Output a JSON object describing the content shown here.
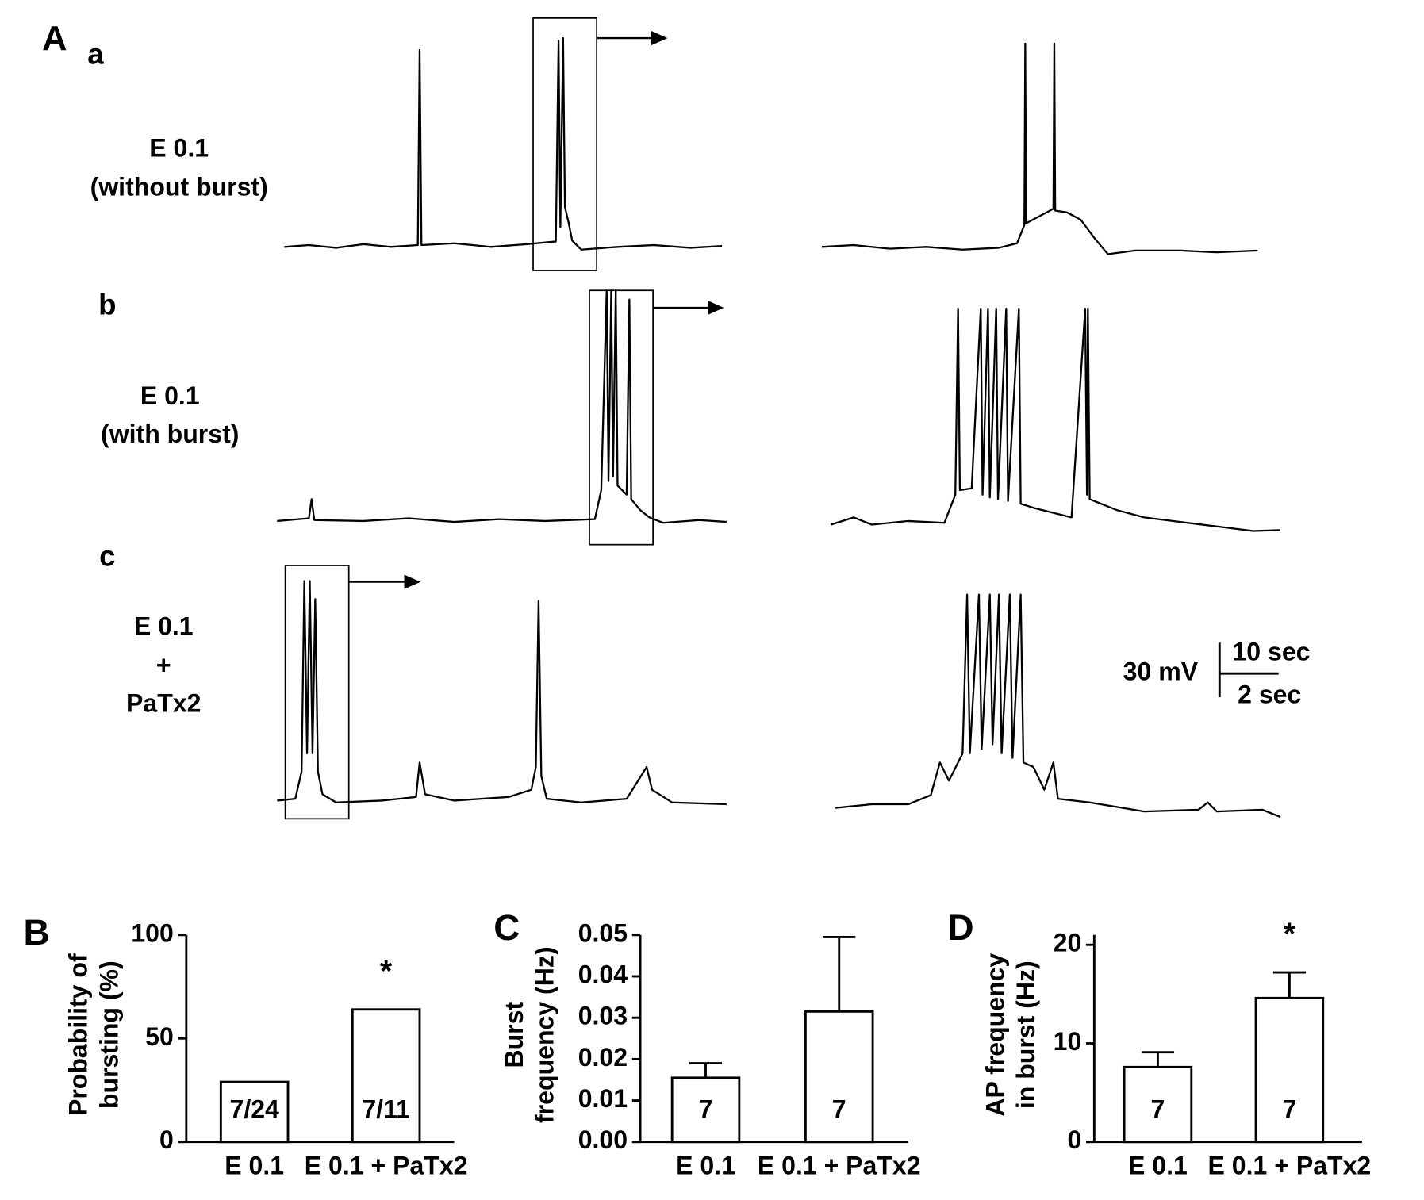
{
  "panel_a": {
    "panel_label": "A",
    "rows": [
      {
        "label": "a",
        "condition": [
          "E 0.1",
          "(without burst)"
        ]
      },
      {
        "label": "b",
        "condition": [
          "E 0.1",
          "(with burst)"
        ]
      },
      {
        "label": "c",
        "condition": [
          "E 0.1",
          "+",
          "PaTx2"
        ]
      }
    ],
    "scale_bar": {
      "voltage": "30 mV",
      "time_long": "10 sec",
      "time_short": "2 sec"
    }
  },
  "chart_data": [
    {
      "type": "bar",
      "panel": "B",
      "ylabel": [
        "Probability of",
        "bursting (%)"
      ],
      "categories": [
        "E 0.1",
        "E 0.1 + PaTx2"
      ],
      "values": [
        29,
        64
      ],
      "n_labels": [
        "7/24",
        "7/11"
      ],
      "annotation": "*",
      "color": "#ffffff",
      "ylim": [
        0,
        100
      ],
      "yticks": [
        0,
        50,
        100
      ]
    },
    {
      "type": "bar",
      "panel": "C",
      "ylabel": [
        "Burst",
        "frequency (Hz)"
      ],
      "categories": [
        "E 0.1",
        "E 0.1 + PaTx2"
      ],
      "values": [
        0.0155,
        0.0315
      ],
      "errors": [
        0.0035,
        0.018
      ],
      "n_labels": [
        "7",
        "7"
      ],
      "color": "#ffffff",
      "ylim": [
        0,
        0.05
      ],
      "yticks": [
        {
          "value": 0,
          "label": "0.00"
        },
        0.01,
        0.02,
        0.03,
        0.04,
        0.05
      ]
    },
    {
      "type": "bar",
      "panel": "D",
      "ylabel": [
        "AP frequency",
        "in burst (Hz)"
      ],
      "categories": [
        "E 0.1",
        "E 0.1 + PaTx2"
      ],
      "values": [
        7.6,
        14.6
      ],
      "errors": [
        1.5,
        2.6
      ],
      "n_labels": [
        "7",
        "7"
      ],
      "annotation": "*",
      "color": "#ffffff",
      "ylim": [
        0,
        21
      ],
      "yticks": [
        0,
        10,
        20
      ]
    }
  ]
}
